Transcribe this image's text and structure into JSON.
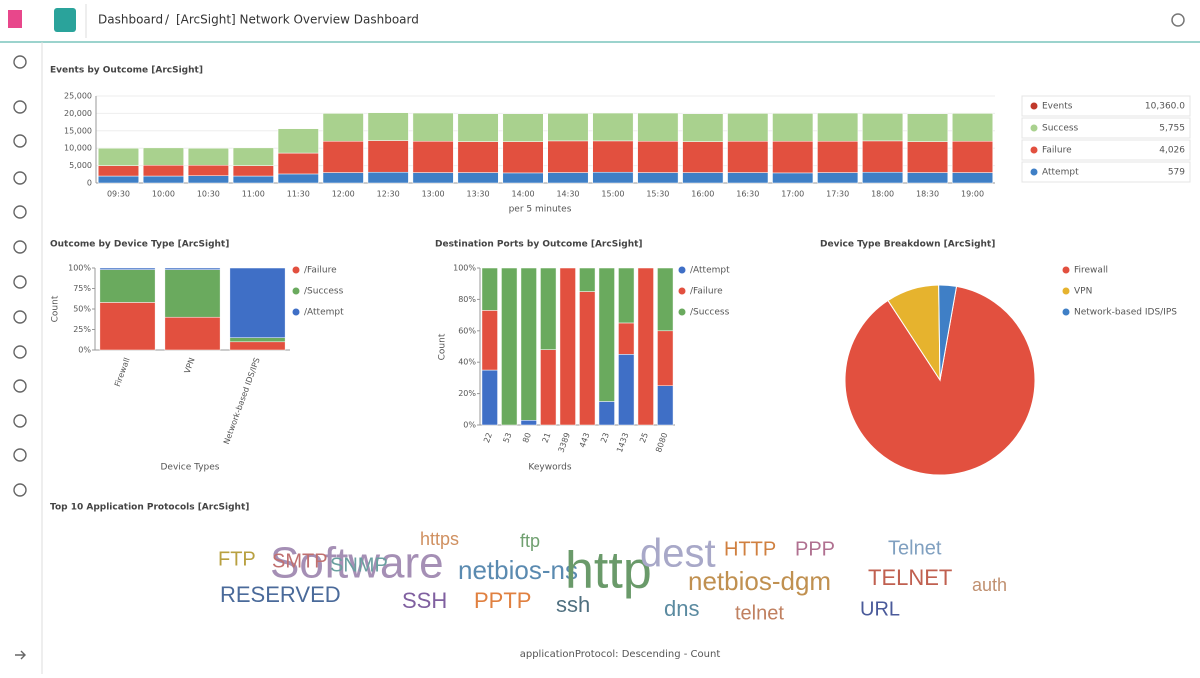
{
  "header": {
    "breadcrumbs": [
      "Dashboard",
      "[ArcSight] Network Overview Dashboard"
    ]
  },
  "chart_data": [
    {
      "type": "stacked_bar",
      "title": "Events by Outcome [ArcSight]",
      "x_label": "per 5 minutes",
      "categories": [
        "09:30",
        "10:00",
        "10:30",
        "11:00",
        "11:30",
        "12:00",
        "12:30",
        "13:00",
        "13:30",
        "14:00",
        "14:30",
        "15:00",
        "15:30",
        "16:00",
        "16:30",
        "17:00",
        "17:30",
        "18:00",
        "18:30",
        "19:00"
      ],
      "series": [
        {
          "name": "Attempt",
          "color": "#3f7fc6",
          "legend_value": "579",
          "values": [
            2000,
            2000,
            2100,
            2000,
            2600,
            3000,
            3100,
            3000,
            3000,
            2900,
            3000,
            3100,
            3000,
            3000,
            3000,
            2900,
            3000,
            3100,
            3000,
            3000
          ]
        },
        {
          "name": "Failure",
          "color": "#e2503f",
          "legend_value": "4,026",
          "values": [
            3000,
            3100,
            3000,
            3000,
            6000,
            9000,
            9100,
            9000,
            8900,
            9000,
            9100,
            9000,
            9000,
            8900,
            9000,
            9100,
            9000,
            9000,
            8900,
            9000
          ]
        },
        {
          "name": "Success",
          "color": "#a9d18e",
          "legend_value": "5,755",
          "values": [
            5000,
            5000,
            4900,
            5100,
            7000,
            8000,
            8000,
            8100,
            8000,
            8000,
            7900,
            8000,
            8100,
            8000,
            8000,
            8000,
            8100,
            7900,
            8000,
            8000
          ]
        }
      ],
      "summary": {
        "name": "Events",
        "color": "#c0392b",
        "legend_value": "10,360.0"
      },
      "ylim": [
        0,
        25000
      ],
      "yticks": [
        0,
        {
          "value": 5000,
          "label": "5,000"
        },
        {
          "value": 10000,
          "label": "10,000"
        },
        {
          "value": 15000,
          "label": "15,000"
        },
        {
          "value": 20000,
          "label": "20,000"
        },
        {
          "value": 25000,
          "label": "25,000"
        }
      ],
      "grid": true
    },
    {
      "type": "stacked_bar",
      "title": "Outcome by Device Type [ArcSight]",
      "x_label": "Device Types",
      "y_label": "Count",
      "categories": [
        "Firewall",
        "VPN",
        "Network-based IDS/IPS"
      ],
      "series": [
        {
          "name": "/Failure",
          "color": "#e2503f",
          "values": [
            58,
            40,
            10
          ]
        },
        {
          "name": "/Success",
          "color": "#6aaa5e",
          "values": [
            40,
            58,
            5
          ]
        },
        {
          "name": "/Attempt",
          "color": "#3f6fc6",
          "values": [
            2,
            2,
            85
          ]
        }
      ],
      "ylim": [
        0,
        100
      ],
      "yticks": [
        {
          "value": 0,
          "label": "0%"
        },
        {
          "value": 25,
          "label": "25%"
        },
        {
          "value": 50,
          "label": "50%"
        },
        {
          "value": 75,
          "label": "75%"
        },
        {
          "value": 100,
          "label": "100%"
        }
      ]
    },
    {
      "type": "stacked_bar",
      "title": "Destination Ports by Outcome [ArcSight]",
      "x_label": "Keywords",
      "y_label": "Count",
      "categories": [
        "22",
        "53",
        "80",
        "21",
        "3389",
        "443",
        "23",
        "1433",
        "25",
        "8080"
      ],
      "series": [
        {
          "name": "/Attempt",
          "color": "#3f6fc6",
          "values": [
            35,
            0,
            3,
            0,
            0,
            0,
            15,
            45,
            0,
            25
          ]
        },
        {
          "name": "/Failure",
          "color": "#e2503f",
          "values": [
            38,
            0,
            0,
            48,
            100,
            85,
            0,
            20,
            100,
            35
          ]
        },
        {
          "name": "/Success",
          "color": "#6aaa5e",
          "values": [
            27,
            100,
            97,
            52,
            0,
            15,
            85,
            35,
            0,
            40
          ]
        }
      ],
      "ylim": [
        0,
        100
      ],
      "yticks": [
        {
          "value": 0,
          "label": "0%"
        },
        {
          "value": 20,
          "label": "20%"
        },
        {
          "value": 40,
          "label": "40%"
        },
        {
          "value": 60,
          "label": "60%"
        },
        {
          "value": 80,
          "label": "80%"
        },
        {
          "value": 100,
          "label": "100%"
        }
      ]
    },
    {
      "type": "pie",
      "title": "Device Type Breakdown [ArcSight]",
      "categories": [
        "Firewall",
        "VPN",
        "Network-based IDS/IPS"
      ],
      "values": [
        88,
        9,
        3
      ],
      "colors": [
        "#e2503f",
        "#e6b32e",
        "#3f7fc6"
      ]
    }
  ],
  "tag_cloud": {
    "title": "Top 10 Application Protocols [ArcSight]",
    "words": [
      "Software",
      "FTP",
      "SMTP",
      "SNMP",
      "https",
      "ftp",
      "netbios-ns",
      "http",
      "dest",
      "HTTP",
      "PPP",
      "netbios-dgm",
      "Telnet",
      "TELNET",
      "RESERVED",
      "SSH",
      "PPTP",
      "ssh",
      "dns",
      "telnet",
      "URL",
      "auth"
    ],
    "footer": "applicationProtocol: Descending - Count"
  }
}
